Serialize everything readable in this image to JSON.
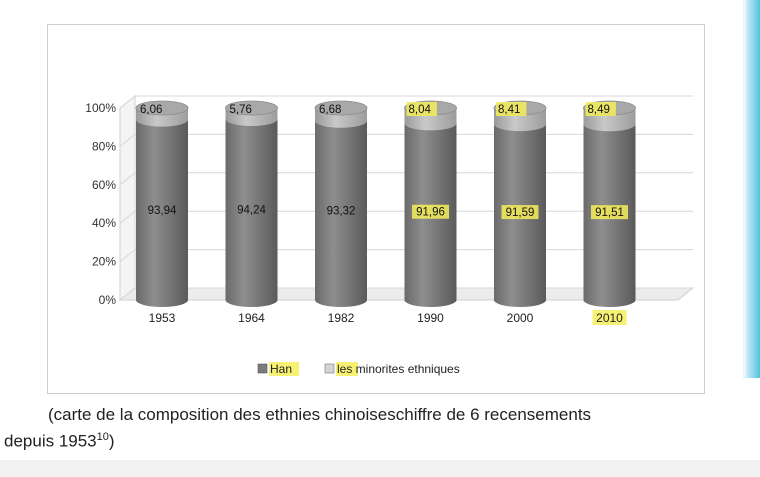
{
  "chart_data": {
    "type": "bar",
    "stacked": true,
    "percent_stacked": true,
    "style": "3d-cylinder",
    "categories": [
      "1953",
      "1964",
      "1982",
      "1990",
      "2000",
      "2010"
    ],
    "series": [
      {
        "name": "Han",
        "values": [
          93.94,
          94.24,
          93.32,
          91.96,
          91.59,
          91.51
        ],
        "color": "#7b7b7b"
      },
      {
        "name": "les minorites ethniques",
        "values": [
          6.06,
          5.76,
          6.68,
          8.04,
          8.41,
          8.49
        ],
        "color": "#bdbdbd"
      }
    ],
    "value_labels": {
      "Han": [
        "93,94",
        "94,24",
        "93,32",
        "91,96",
        "91,59",
        "91,51"
      ],
      "les minorites ethniques": [
        "6,06",
        "5,76",
        "6,68",
        "8,04",
        "8,41",
        "8,49"
      ]
    },
    "y_ticks": [
      "0%",
      "20%",
      "40%",
      "60%",
      "80%",
      "100%"
    ],
    "ylim": [
      0,
      100
    ],
    "grid": true,
    "legend_position": "bottom",
    "highlight_color": "#f5ef5a"
  },
  "caption": {
    "line1": "(carte de la composition des ethnies chinoiseschiffre de 6 recensements",
    "line2": "depuis 1953",
    "footnote": "10",
    "line2_end": ")"
  }
}
